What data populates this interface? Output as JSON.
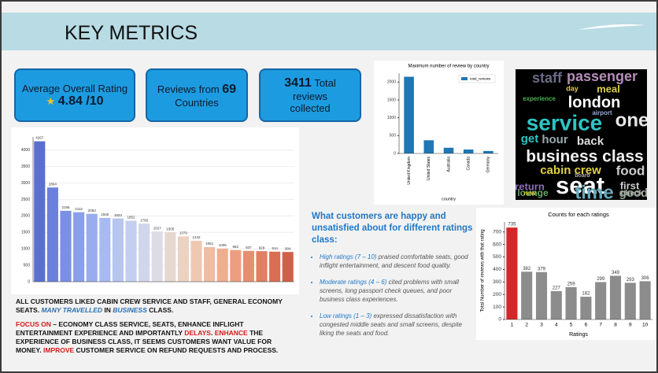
{
  "header": {
    "title": "KEY METRICS"
  },
  "cards": [
    {
      "title": "Average Overall Rating",
      "value": "4.84 /10"
    },
    {
      "prefix": "Reviews from ",
      "number": "69",
      "suffix": "Countries"
    },
    {
      "number": "3411",
      "suffix": "Total reviews collected"
    }
  ],
  "summary": [
    [
      {
        "text": "ALL CUSTOMERS LIKED CABIN CREW SERVICE AND STAFF, GENERAL ECONOMY SEATS. ",
        "style": "plain"
      },
      {
        "text": "MANY TRAVELLED",
        "style": "italic"
      },
      {
        "text": " IN ",
        "style": "plain"
      },
      {
        "text": "BUSINESS",
        "style": "italic"
      },
      {
        "text": " CLASS.",
        "style": "plain"
      }
    ],
    [
      {
        "text": "FOCUS ON",
        "style": "red"
      },
      {
        "text": " – ECONOMY CLASS SERVICE, SEATS, ENHANCE INFLIGHT ENTERTAINMENT EXPERIENCE AND IMPORTANTLY ",
        "style": "plain"
      },
      {
        "text": "DELAYS",
        "style": "red"
      },
      {
        "text": ". ",
        "style": "plain"
      },
      {
        "text": "ENHANCE",
        "style": "red"
      },
      {
        "text": " THE EXPERIENCE OF BUSINESS CLASS, IT SEEMS CUSTOMERS WANT VALUE FOR MONEY. ",
        "style": "plain"
      },
      {
        "text": "IMPROVE",
        "style": "red"
      },
      {
        "text": " CUSTOMER SERVICE ON REFUND REQUESTS AND PROCESS.",
        "style": "plain"
      }
    ]
  ],
  "insights": {
    "heading": "What customers are happy and unsatisfied about for different ratings class:",
    "bullets": [
      {
        "label": "High ratings (7 – 10)",
        "text": " praised comfortable seats, good inflight entertainment, and descent food quality."
      },
      {
        "label": "Moderate ratings (4 – 6)",
        "text": " cited problems with small screens, long passport check queues, and poor business class experiences."
      },
      {
        "label": "Low ratings (1 – 3)",
        "text": " expressed dissatisfaction with congested middle seats and small screens, despite liking the seats and food."
      }
    ]
  },
  "wordcloud": {
    "words": [
      "passenger",
      "staff",
      "day",
      "meal",
      "london",
      "experience",
      "airport",
      "service",
      "one",
      "get",
      "hour",
      "back",
      "business class",
      "cabin crew",
      "food",
      "return",
      "seat",
      "first",
      "good",
      "lounge",
      "time",
      "check",
      "new",
      "board"
    ]
  },
  "chart_data": [
    {
      "type": "bar",
      "categories": [
        null,
        null,
        null,
        null,
        null,
        null,
        null,
        null,
        null,
        null,
        null,
        null,
        null,
        null,
        null,
        null,
        null,
        null,
        null,
        null
      ],
      "values": [
        4267,
        2864,
        2155,
        2112,
        2063,
        1940,
        1923,
        1852,
        1765,
        1527,
        1505,
        1379,
        1242,
        1051,
        1006,
        962,
        937,
        929,
        914,
        904
      ],
      "colors": [
        "#5b6fd1",
        "#6a80dc",
        "#7a90e4",
        "#8a9fea",
        "#99adee",
        "#a8baf0",
        "#b6c6f1",
        "#c3cfef",
        "#d0d6ec",
        "#dcdbe6",
        "#e5d8d1",
        "#ecd2c2",
        "#efc8b2",
        "#f0bca2",
        "#eeae91",
        "#eb9f80",
        "#e68f70",
        "#e07f62",
        "#d86f55",
        "#cf6149"
      ],
      "ylim": [
        0,
        4400
      ],
      "yticks": [
        0,
        500,
        1000,
        1500,
        2000,
        2500,
        3000,
        3500,
        4000
      ],
      "grid": true,
      "data_labels": true
    },
    {
      "type": "bar",
      "title": "Maximum number of review by country",
      "x_label": "country",
      "categories": [
        "United Kingdom",
        "United States",
        "Australia",
        "Canada",
        "Germany"
      ],
      "series": [
        {
          "name": "total_reviews",
          "color": "#1f77b4",
          "values": [
            2150,
            370,
            160,
            110,
            70
          ]
        }
      ],
      "ylim": [
        0,
        2250
      ],
      "yticks": [
        0,
        500,
        1000,
        1500,
        2000
      ],
      "grid": false,
      "legend": "upper-right",
      "x_label_rotation": 90
    },
    {
      "type": "bar",
      "title": "Counts for each ratings",
      "x_label": "Ratings",
      "y_label": "Total Number of reviews with that rating",
      "categories": [
        "1",
        "2",
        "3",
        "4",
        "5",
        "6",
        "7",
        "8",
        "9",
        "10"
      ],
      "values": [
        735,
        382,
        379,
        227,
        259,
        182,
        299,
        349,
        293,
        306
      ],
      "colors": [
        "#d62728",
        "#8c8c8c",
        "#8c8c8c",
        "#8c8c8c",
        "#8c8c8c",
        "#8c8c8c",
        "#8c8c8c",
        "#8c8c8c",
        "#8c8c8c",
        "#8c8c8c"
      ],
      "ylim": [
        0,
        780
      ],
      "yticks": [
        0,
        100,
        200,
        300,
        400,
        500,
        600,
        700
      ],
      "grid": false,
      "data_labels": true
    }
  ]
}
